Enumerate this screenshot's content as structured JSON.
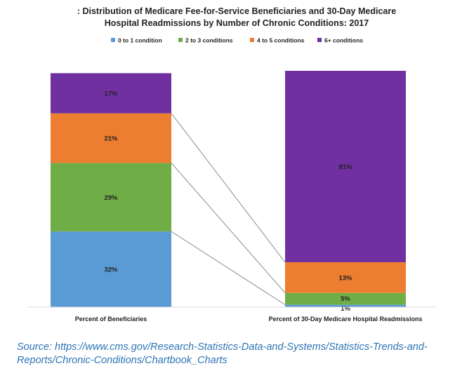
{
  "chart_data": {
    "type": "bar",
    "stacked": true,
    "title_lines": [
      ": Distribution of Medicare Fee-for-Service Beneficiaries and 30-Day Medicare",
      "Hospital Readmissions by Number of Chronic Conditions: 2017"
    ],
    "categories": [
      "Percent of Beneficiaries",
      "Percent of 30-Day Medicare Hospital Readmissions"
    ],
    "series": [
      {
        "name": "0 to 1 condition",
        "color": "#5B9BD5",
        "values": [
          32,
          1
        ],
        "labels": [
          "32%",
          "1%"
        ]
      },
      {
        "name": "2 to 3 conditions",
        "color": "#70AD47",
        "values": [
          29,
          5
        ],
        "labels": [
          "29%",
          "5%"
        ]
      },
      {
        "name": "4 to 5 conditions",
        "color": "#ED7D31",
        "values": [
          21,
          13
        ],
        "labels": [
          "21%",
          "13%"
        ]
      },
      {
        "name": "6+ conditions",
        "color": "#7030A0",
        "values": [
          17,
          81
        ],
        "labels": [
          "17%",
          "81%"
        ]
      }
    ],
    "ylim": [
      0,
      100
    ],
    "legend_position": "top",
    "connector_color": "#7F7F7F"
  },
  "source": "Source: https://www.cms.gov/Research-Statistics-Data-and-Systems/Statistics-Trends-and-Reports/Chronic-Conditions/Chartbook_Charts"
}
